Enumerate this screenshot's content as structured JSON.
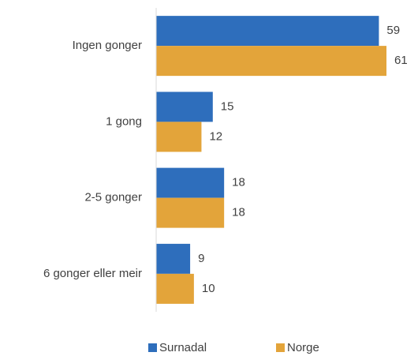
{
  "chart_data": {
    "type": "bar",
    "orientation": "horizontal",
    "categories": [
      "Ingen gonger",
      "1 gong",
      "2-5 gonger",
      "6 gonger eller meir"
    ],
    "series": [
      {
        "name": "Surnadal",
        "color": "#2e6ebc",
        "values": [
          59,
          15,
          18,
          9
        ]
      },
      {
        "name": "Norge",
        "color": "#e3a43a",
        "values": [
          61,
          12,
          18,
          10
        ]
      }
    ],
    "xlim": [
      0,
      61
    ],
    "legend": "bottom"
  }
}
